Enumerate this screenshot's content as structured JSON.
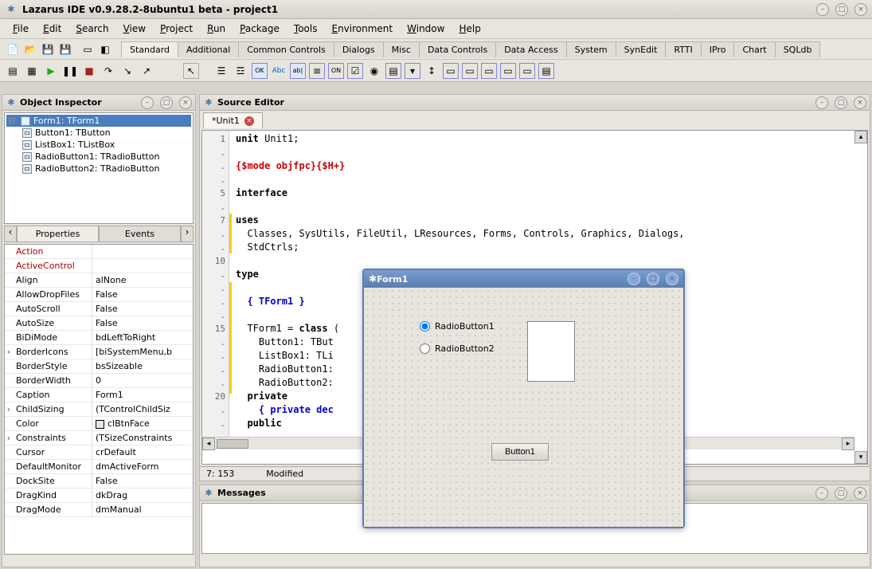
{
  "window": {
    "title": "Lazarus IDE v0.9.28.2-8ubuntu1 beta - project1"
  },
  "menus": [
    "File",
    "Edit",
    "Search",
    "View",
    "Project",
    "Run",
    "Package",
    "Tools",
    "Environment",
    "Window",
    "Help"
  ],
  "component_tabs": [
    "Standard",
    "Additional",
    "Common Controls",
    "Dialogs",
    "Misc",
    "Data Controls",
    "Data Access",
    "System",
    "SynEdit",
    "RTTI",
    "IPro",
    "Chart",
    "SQLdb"
  ],
  "active_component_tab": "Standard",
  "object_inspector": {
    "title": "Object Inspector",
    "tree": [
      {
        "label": "Form1: TForm1",
        "selected": true,
        "root": true
      },
      {
        "label": "Button1: TButton"
      },
      {
        "label": "ListBox1: TListBox"
      },
      {
        "label": "RadioButton1: TRadioButton"
      },
      {
        "label": "RadioButton2: TRadioButton"
      }
    ],
    "tabs": [
      "Properties",
      "Events"
    ],
    "active_tab": "Properties",
    "properties": [
      {
        "name": "Action",
        "value": "",
        "red": true
      },
      {
        "name": "ActiveControl",
        "value": "",
        "red": true
      },
      {
        "name": "Align",
        "value": "alNone"
      },
      {
        "name": "AllowDropFiles",
        "value": "False"
      },
      {
        "name": "AutoScroll",
        "value": "False"
      },
      {
        "name": "AutoSize",
        "value": "False"
      },
      {
        "name": "BiDiMode",
        "value": "bdLeftToRight"
      },
      {
        "name": "BorderIcons",
        "value": "[biSystemMenu,b",
        "exp": true
      },
      {
        "name": "BorderStyle",
        "value": "bsSizeable"
      },
      {
        "name": "BorderWidth",
        "value": "0"
      },
      {
        "name": "Caption",
        "value": "Form1"
      },
      {
        "name": "ChildSizing",
        "value": "(TControlChildSiz",
        "exp": true
      },
      {
        "name": "Color",
        "value": "clBtnFace",
        "swatch": "#e8e4de"
      },
      {
        "name": "Constraints",
        "value": "(TSizeConstraints",
        "exp": true
      },
      {
        "name": "Cursor",
        "value": "crDefault"
      },
      {
        "name": "DefaultMonitor",
        "value": "dmActiveForm"
      },
      {
        "name": "DockSite",
        "value": "False"
      },
      {
        "name": "DragKind",
        "value": "dkDrag"
      },
      {
        "name": "DragMode",
        "value": "dmManual"
      }
    ]
  },
  "source_editor": {
    "title": "Source Editor",
    "tab_label": "*Unit1",
    "status_pos": "7: 153",
    "status_mod": "Modified",
    "gutter": [
      "1",
      ".",
      ".",
      ".",
      "5",
      ".",
      "7",
      ".",
      ".",
      "10",
      ".",
      ".",
      ".",
      ".",
      "15",
      ".",
      ".",
      ".",
      ".",
      "20",
      ".",
      "."
    ],
    "code_lines": [
      {
        "t": "unit",
        "cls": "kw",
        "rest": " Unit1;"
      },
      {
        "blank": true
      },
      {
        "raw": "{$mode objfpc}{$H+}",
        "cls": "dir"
      },
      {
        "blank": true
      },
      {
        "t": "interface",
        "cls": "kw"
      },
      {
        "blank": true
      },
      {
        "t": "uses",
        "cls": "kw"
      },
      {
        "plain": "  Classes, SysUtils, FileUtil, LResources, Forms, Controls, Graphics, Dialogs,"
      },
      {
        "plain": "  StdCtrls;"
      },
      {
        "blank": true
      },
      {
        "t": "type",
        "cls": "kw"
      },
      {
        "blank": true
      },
      {
        "raw": "  { TForm1 }",
        "cls": "cmt"
      },
      {
        "blank": true
      },
      {
        "plain_pre": "  TForm1 = ",
        "t": "class",
        "cls": "kw",
        "rest": " ("
      },
      {
        "plain": "    Button1: TBut"
      },
      {
        "plain": "    ListBox1: TLi"
      },
      {
        "plain": "    RadioButton1:"
      },
      {
        "plain": "    RadioButton2:"
      },
      {
        "plain_pre": "  ",
        "t": "private",
        "cls": "kw"
      },
      {
        "raw": "    { private dec",
        "cls": "cmt"
      },
      {
        "plain_pre": "  ",
        "t": "public",
        "cls": "kw"
      }
    ]
  },
  "form_designer": {
    "title": "Form1",
    "radio1": "RadioButton1",
    "radio2": "RadioButton2",
    "button1": "Button1"
  },
  "messages": {
    "title": "Messages"
  },
  "colors": {
    "selection": "#4a7cbf",
    "form_border": "#5a7eb0",
    "directive": "#cc0000",
    "comment": "#0000cc",
    "mod_mark": "#ffcc00"
  }
}
